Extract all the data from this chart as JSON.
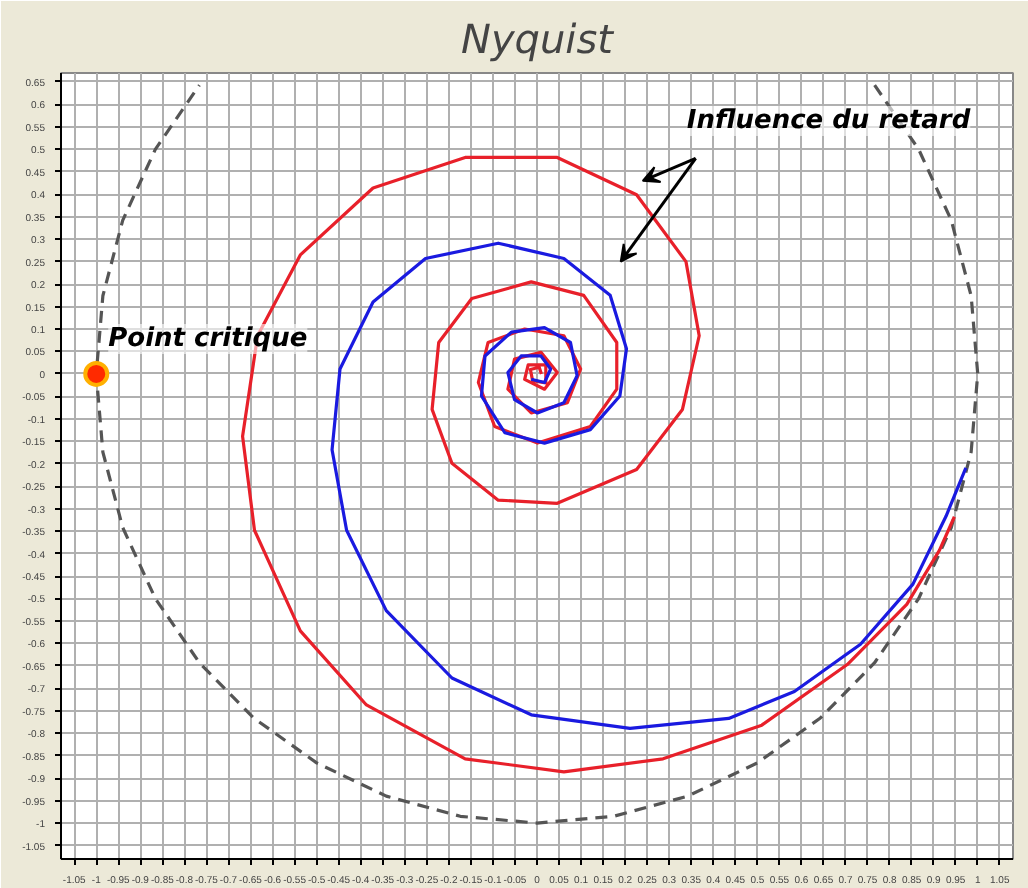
{
  "chart_data": {
    "type": "line",
    "title": "Nyquist",
    "xlim": [
      -1.08,
      1.08
    ],
    "ylim": [
      -1.08,
      0.67
    ],
    "xticks": [
      -1.05,
      -1,
      -0.95,
      -0.9,
      -0.85,
      -0.8,
      -0.75,
      -0.7,
      -0.65,
      -0.6,
      -0.55,
      -0.5,
      -0.45,
      -0.4,
      -0.35,
      -0.3,
      -0.25,
      -0.2,
      -0.15,
      -0.1,
      -0.05,
      0,
      0.05,
      0.1,
      0.15,
      0.2,
      0.25,
      0.3,
      0.35,
      0.4,
      0.45,
      0.5,
      0.55,
      0.6,
      0.65,
      0.7,
      0.75,
      0.8,
      0.85,
      0.9,
      0.95,
      1,
      1.05
    ],
    "yticks": [
      -1.05,
      -1,
      -0.95,
      -0.9,
      -0.85,
      -0.8,
      -0.75,
      -0.7,
      -0.65,
      -0.6,
      -0.55,
      -0.5,
      -0.45,
      -0.4,
      -0.35,
      -0.3,
      -0.25,
      -0.2,
      -0.15,
      -0.1,
      -0.05,
      0,
      0.05,
      0.1,
      0.15,
      0.2,
      0.25,
      0.3,
      0.35,
      0.4,
      0.45,
      0.5,
      0.55,
      0.6,
      0.65
    ],
    "grid": true,
    "series": [
      {
        "color": "#555555",
        "line_style": "dashed",
        "x": [
          0.766,
          0.866,
          0.94,
          0.985,
          1,
          0.985,
          0.94,
          0.866,
          0.766,
          0.643,
          0.5,
          0.342,
          0.174,
          0,
          -0.174,
          -0.342,
          -0.5,
          -0.643,
          -0.766,
          -0.866,
          -0.94,
          -0.985,
          -1,
          -0.985,
          -0.94,
          -0.866,
          -0.766
        ],
        "values": [
          0.643,
          0.5,
          0.342,
          0.174,
          0,
          -0.174,
          -0.342,
          -0.5,
          -0.643,
          -0.766,
          -0.866,
          -0.94,
          -0.985,
          -1,
          -0.985,
          -0.94,
          -0.866,
          -0.766,
          -0.643,
          -0.5,
          -0.342,
          -0.174,
          0,
          0.174,
          0.342,
          0.5,
          0.643
        ]
      },
      {
        "color": "#e8202a",
        "line_style": "solid",
        "x": [
          0.947,
          0.913,
          0.839,
          0.704,
          0.51,
          0.286,
          0.061,
          -0.163,
          -0.387,
          -0.537,
          -0.641,
          -0.668,
          -0.634,
          -0.537,
          -0.372,
          -0.163,
          0.046,
          0.226,
          0.338,
          0.368,
          0.33,
          0.226,
          0.046,
          -0.088,
          -0.193,
          -0.238,
          -0.223,
          -0.148,
          -0.013,
          0.106,
          0.181,
          0.181,
          0.121,
          0.001,
          -0.096,
          -0.133,
          -0.111,
          -0.028,
          0.061,
          0.099,
          0.069,
          -0.013,
          -0.066,
          -0.051,
          0.009,
          0.046,
          0.017,
          -0.028,
          -0.02,
          0.02,
          0.02,
          -0.01,
          -0.015,
          0.005,
          0.01
        ],
        "values": [
          -0.318,
          -0.393,
          -0.513,
          -0.647,
          -0.782,
          -0.857,
          -0.886,
          -0.857,
          -0.737,
          -0.572,
          -0.348,
          -0.139,
          0.085,
          0.265,
          0.414,
          0.482,
          0.482,
          0.399,
          0.25,
          0.085,
          -0.079,
          -0.213,
          -0.288,
          -0.281,
          -0.199,
          -0.079,
          0.07,
          0.168,
          0.205,
          0.175,
          0.07,
          -0.034,
          -0.117,
          -0.154,
          -0.117,
          -0.019,
          0.07,
          0.1,
          0.085,
          0.011,
          -0.064,
          -0.087,
          -0.034,
          0.033,
          0.048,
          0.003,
          -0.034,
          -0.012,
          0.02,
          0.02,
          -0.02,
          -0.015,
          0.01,
          0.015,
          0
        ]
      },
      {
        "color": "#1a1ae0",
        "line_style": "solid",
        "x": [
          0.973,
          0.928,
          0.853,
          0.734,
          0.584,
          0.435,
          0.211,
          -0.013,
          -0.193,
          -0.342,
          -0.432,
          -0.465,
          -0.447,
          -0.372,
          -0.253,
          -0.088,
          0.061,
          0.166,
          0.203,
          0.188,
          0.121,
          0.017,
          -0.073,
          -0.126,
          -0.118,
          -0.058,
          0.017,
          0.076,
          0.091,
          0.061,
          0.001,
          -0.051,
          -0.066,
          -0.036,
          0.009,
          0.031,
          0.017,
          -0.013
        ],
        "values": [
          -0.209,
          -0.317,
          -0.468,
          -0.602,
          -0.707,
          -0.767,
          -0.789,
          -0.759,
          -0.677,
          -0.527,
          -0.348,
          -0.169,
          0.011,
          0.16,
          0.257,
          0.291,
          0.257,
          0.175,
          0.056,
          -0.049,
          -0.124,
          -0.154,
          -0.131,
          -0.049,
          0.04,
          0.093,
          0.103,
          0.07,
          -0.004,
          -0.064,
          -0.087,
          -0.057,
          0.003,
          0.04,
          0.04,
          0.011,
          -0.019,
          -0.012
        ]
      },
      {
        "type": "scatter",
        "marker": "circle",
        "color": "#ff2a00",
        "x": [
          -1
        ],
        "values": [
          0
        ]
      }
    ],
    "annotations": [
      {
        "text": "Point critique",
        "x": -1,
        "y": 0
      },
      "Influence du retard"
    ]
  }
}
